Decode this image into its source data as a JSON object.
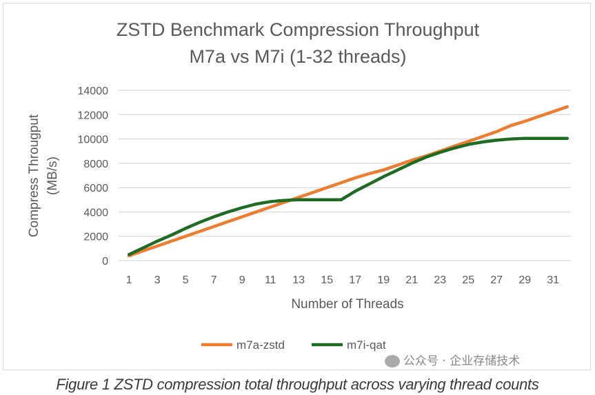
{
  "chart_data": {
    "type": "line",
    "title": [
      "ZSTD Benchmark Compression Throughput",
      "M7a vs M7i (1-32 threads)"
    ],
    "xlabel": "Number of Threads",
    "ylabel": [
      "Compress Througput",
      "(MB/s)"
    ],
    "x": [
      1,
      2,
      3,
      4,
      5,
      6,
      7,
      8,
      9,
      10,
      11,
      12,
      13,
      14,
      15,
      16,
      17,
      18,
      19,
      20,
      21,
      22,
      23,
      24,
      25,
      26,
      27,
      28,
      29,
      30,
      31,
      32
    ],
    "xtick_labels": [
      "1",
      "3",
      "5",
      "7",
      "9",
      "11",
      "13",
      "15",
      "17",
      "19",
      "21",
      "23",
      "25",
      "27",
      "29",
      "31"
    ],
    "ylim": [
      0,
      14000
    ],
    "ytick_labels": [
      "0",
      "2000",
      "4000",
      "6000",
      "8000",
      "10000",
      "12000",
      "14000"
    ],
    "grid": true,
    "legend_position": "bottom",
    "series": [
      {
        "name": "m7a-zstd",
        "color": "#ed7d31",
        "values": [
          400,
          800,
          1200,
          1600,
          2000,
          2400,
          2800,
          3200,
          3600,
          4000,
          4400,
          4800,
          5200,
          5600,
          6000,
          6400,
          6800,
          7150,
          7450,
          7850,
          8250,
          8600,
          9000,
          9400,
          9800,
          10200,
          10600,
          11100,
          11450,
          11850,
          12250,
          12650
        ]
      },
      {
        "name": "m7i-qat",
        "color": "#1e6b23",
        "values": [
          500,
          1050,
          1600,
          2100,
          2650,
          3150,
          3600,
          4000,
          4350,
          4650,
          4850,
          4950,
          5000,
          5000,
          5000,
          5000,
          5700,
          6300,
          6900,
          7450,
          8000,
          8500,
          8900,
          9250,
          9550,
          9750,
          9900,
          10000,
          10050,
          10050,
          10050,
          10050
        ]
      }
    ]
  },
  "caption": "Figure 1 ZSTD compression total throughput across varying thread counts",
  "watermark": "公众号 · 企业存储技术"
}
